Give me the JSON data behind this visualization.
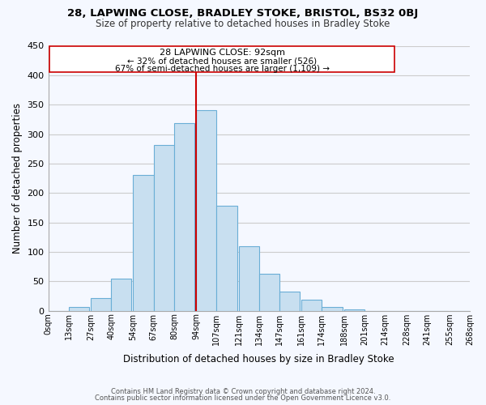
{
  "title": "28, LAPWING CLOSE, BRADLEY STOKE, BRISTOL, BS32 0BJ",
  "subtitle": "Size of property relative to detached houses in Bradley Stoke",
  "xlabel": "Distribution of detached houses by size in Bradley Stoke",
  "ylabel": "Number of detached properties",
  "footnote1": "Contains HM Land Registry data © Crown copyright and database right 2024.",
  "footnote2": "Contains public sector information licensed under the Open Government Licence v3.0.",
  "bar_left_edges": [
    0,
    13,
    27,
    40,
    54,
    67,
    80,
    94,
    107,
    121,
    134,
    147,
    161,
    174,
    188,
    201,
    214,
    228,
    241,
    255
  ],
  "bar_heights": [
    0,
    6,
    22,
    55,
    230,
    282,
    318,
    340,
    178,
    109,
    63,
    33,
    19,
    7,
    2,
    0,
    0,
    0,
    0,
    0
  ],
  "bar_widths": [
    13,
    13,
    13,
    13,
    13,
    13,
    13,
    13,
    13,
    13,
    13,
    13,
    13,
    13,
    13,
    13,
    13,
    13,
    13,
    13
  ],
  "tick_labels": [
    "0sqm",
    "13sqm",
    "27sqm",
    "40sqm",
    "54sqm",
    "67sqm",
    "80sqm",
    "94sqm",
    "107sqm",
    "121sqm",
    "134sqm",
    "147sqm",
    "161sqm",
    "174sqm",
    "188sqm",
    "201sqm",
    "214sqm",
    "228sqm",
    "241sqm",
    "255sqm",
    "268sqm"
  ],
  "tick_positions": [
    0,
    13,
    27,
    40,
    54,
    67,
    80,
    94,
    107,
    121,
    134,
    147,
    161,
    174,
    188,
    201,
    214,
    228,
    241,
    255,
    268
  ],
  "bar_color": "#c8dff0",
  "bar_edge_color": "#6aaed6",
  "vline_x": 94,
  "vline_color": "#cc0000",
  "annotation_title": "28 LAPWING CLOSE: 92sqm",
  "annotation_line1": "← 32% of detached houses are smaller (526)",
  "annotation_line2": "67% of semi-detached houses are larger (1,109) →",
  "annotation_box_color": "#ffffff",
  "annotation_box_edge": "#cc0000",
  "ylim": [
    0,
    450
  ],
  "xlim": [
    0,
    268
  ],
  "background_color": "#f5f8ff",
  "grid_color": "#cccccc"
}
